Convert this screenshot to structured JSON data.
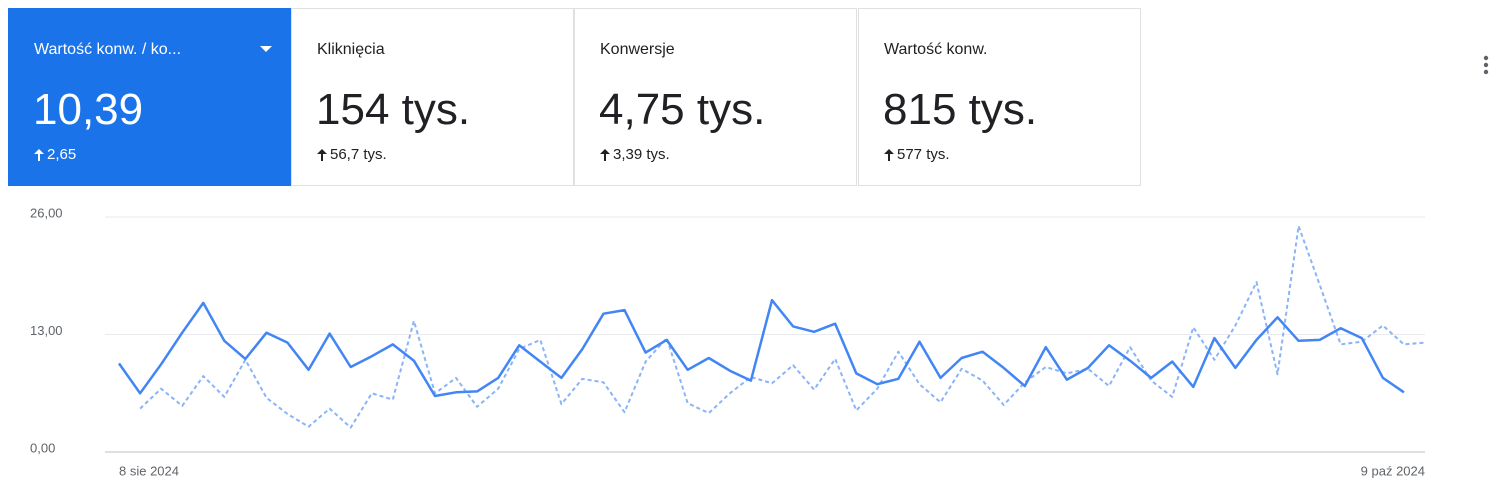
{
  "scorecards": [
    {
      "title": "Wartość konw. / ko...",
      "value": "10,39",
      "change": "2,65"
    },
    {
      "title": "Kliknięcia",
      "value": "154 tys.",
      "change": "56,7 tys."
    },
    {
      "title": "Konwersje",
      "value": "4,75 tys.",
      "change": "3,39 tys."
    },
    {
      "title": "Wartość konw.",
      "value": "815 tys.",
      "change": "577 tys."
    }
  ],
  "chart_data": {
    "type": "line",
    "categories": [
      "8 sie 2024",
      null,
      null,
      null,
      null,
      null,
      null,
      null,
      null,
      null,
      null,
      null,
      null,
      null,
      null,
      null,
      null,
      null,
      null,
      null,
      null,
      null,
      null,
      null,
      null,
      null,
      null,
      null,
      null,
      null,
      null,
      null,
      null,
      null,
      null,
      null,
      null,
      null,
      null,
      null,
      null,
      null,
      null,
      null,
      null,
      null,
      null,
      null,
      null,
      null,
      null,
      null,
      null,
      null,
      null,
      null,
      null,
      null,
      null,
      null,
      null,
      null,
      "9 paź 2024"
    ],
    "series": [
      {
        "color": "#4285f4",
        "dashed": false,
        "values": [
          9.8,
          6.5,
          9.7,
          13.2,
          16.5,
          12.3,
          10.3,
          13.2,
          12.1,
          9.1,
          13.1,
          9.4,
          10.6,
          11.9,
          10.1,
          6.2,
          6.6,
          6.7,
          8.2,
          11.8,
          10.0,
          8.2,
          11.4,
          15.3,
          15.7,
          11.0,
          12.4,
          9.1,
          10.4,
          9.0,
          7.9,
          16.8,
          13.9,
          13.3,
          14.2,
          8.7,
          7.5,
          8.1,
          12.2,
          8.2,
          10.4,
          11.1,
          9.3,
          7.3,
          11.6,
          8.0,
          9.3,
          11.8,
          10.1,
          8.2,
          10.0,
          7.2,
          12.6,
          9.3,
          12.4,
          14.9,
          12.3,
          12.4,
          13.7,
          12.6,
          8.2,
          6.6,
          null
        ]
      },
      {
        "color": "#8ab4f8",
        "dashed": true,
        "values": [
          null,
          4.8,
          7.0,
          5.1,
          8.4,
          6.1,
          10.2,
          6.0,
          4.2,
          2.8,
          4.8,
          2.7,
          6.5,
          5.8,
          14.5,
          6.5,
          8.2,
          5.0,
          7.0,
          11.4,
          12.4,
          5.3,
          8.1,
          7.7,
          4.4,
          10.0,
          12.6,
          5.4,
          4.3,
          6.5,
          8.3,
          7.6,
          9.6,
          6.9,
          10.3,
          4.6,
          7.0,
          11.1,
          7.5,
          5.5,
          9.2,
          7.9,
          5.2,
          7.7,
          9.4,
          8.7,
          9.2,
          7.3,
          11.6,
          7.9,
          6.1,
          13.8,
          10.2,
          14.0,
          18.8,
          8.6,
          25.0,
          18.5,
          11.9,
          12.2,
          14.0,
          11.9,
          12.1
        ]
      }
    ],
    "ylim": [
      0,
      26
    ],
    "yticks": [
      {
        "value": 0,
        "label": "0,00"
      },
      {
        "value": 13,
        "label": "13,00"
      },
      {
        "value": 26,
        "label": "26,00"
      }
    ],
    "grid": true
  }
}
